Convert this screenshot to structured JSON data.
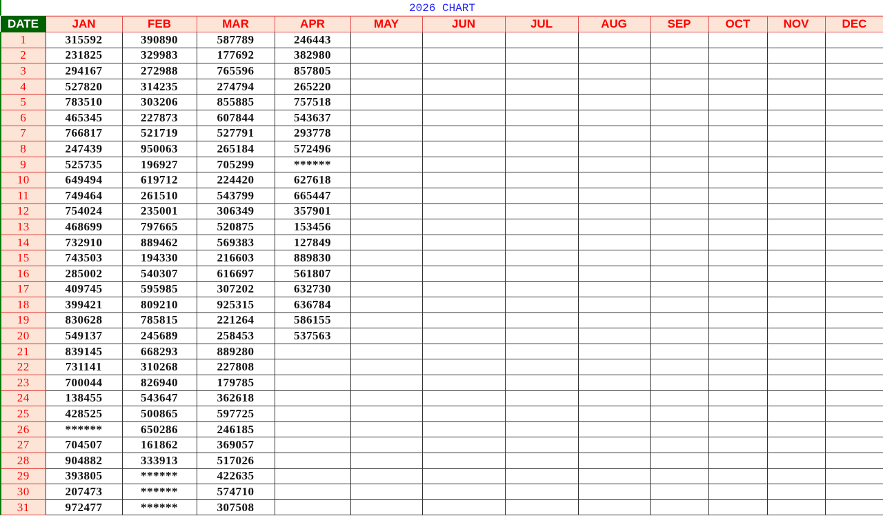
{
  "title": "2026 CHART",
  "colors": {
    "header_bg": "#fce4d6",
    "header_text": "#ff0000",
    "date_header_bg": "#006100",
    "title_text": "#1f1fff"
  },
  "date_header": "DATE",
  "months": [
    "JAN",
    "FEB",
    "MAR",
    "APR",
    "MAY",
    "JUN",
    "JUL",
    "AUG",
    "SEP",
    "OCT",
    "NOV",
    "DEC"
  ],
  "rows": [
    {
      "day": "1",
      "values": [
        "315592",
        "390890",
        "587789",
        "246443"
      ]
    },
    {
      "day": "2",
      "values": [
        "231825",
        "329983",
        "177692",
        "382980"
      ]
    },
    {
      "day": "3",
      "values": [
        "294167",
        "272988",
        "765596",
        "857805"
      ]
    },
    {
      "day": "4",
      "values": [
        "527820",
        "314235",
        "274794",
        "265220"
      ]
    },
    {
      "day": "5",
      "values": [
        "783510",
        "303206",
        "855885",
        "757518"
      ]
    },
    {
      "day": "6",
      "values": [
        "465345",
        "227873",
        "607844",
        "543637"
      ]
    },
    {
      "day": "7",
      "values": [
        "766817",
        "521719",
        "527791",
        "293778"
      ]
    },
    {
      "day": "8",
      "values": [
        "247439",
        "950063",
        "265184",
        "572496"
      ]
    },
    {
      "day": "9",
      "values": [
        "525735",
        "196927",
        "705299",
        "******"
      ]
    },
    {
      "day": "10",
      "values": [
        "649494",
        "619712",
        "224420",
        "627618"
      ]
    },
    {
      "day": "11",
      "values": [
        "749464",
        "261510",
        "543799",
        "665447"
      ]
    },
    {
      "day": "12",
      "values": [
        "754024",
        "235001",
        "306349",
        "357901"
      ]
    },
    {
      "day": "13",
      "values": [
        "468699",
        "797665",
        "520875",
        "153456"
      ]
    },
    {
      "day": "14",
      "values": [
        "732910",
        "889462",
        "569383",
        "127849"
      ]
    },
    {
      "day": "15",
      "values": [
        "743503",
        "194330",
        "216603",
        "889830"
      ]
    },
    {
      "day": "16",
      "values": [
        "285002",
        "540307",
        "616697",
        "561807"
      ]
    },
    {
      "day": "17",
      "values": [
        "409745",
        "595985",
        "307202",
        "632730"
      ]
    },
    {
      "day": "18",
      "values": [
        "399421",
        "809210",
        "925315",
        "636784"
      ]
    },
    {
      "day": "19",
      "values": [
        "830628",
        "785815",
        "221264",
        "586155"
      ]
    },
    {
      "day": "20",
      "values": [
        "549137",
        "245689",
        "258453",
        "537563"
      ]
    },
    {
      "day": "21",
      "values": [
        "839145",
        "668293",
        "889280"
      ]
    },
    {
      "day": "22",
      "values": [
        "731141",
        "310268",
        "227808"
      ]
    },
    {
      "day": "23",
      "values": [
        "700044",
        "826940",
        "179785"
      ]
    },
    {
      "day": "24",
      "values": [
        "138455",
        "543647",
        "362618"
      ]
    },
    {
      "day": "25",
      "values": [
        "428525",
        "500865",
        "597725"
      ]
    },
    {
      "day": "26",
      "values": [
        "******",
        "650286",
        "246185"
      ]
    },
    {
      "day": "27",
      "values": [
        "704507",
        "161862",
        "369057"
      ]
    },
    {
      "day": "28",
      "values": [
        "904882",
        "333913",
        "517026"
      ]
    },
    {
      "day": "29",
      "values": [
        "393805",
        "******",
        "422635"
      ]
    },
    {
      "day": "30",
      "values": [
        "207473",
        "******",
        "574710"
      ]
    },
    {
      "day": "31",
      "values": [
        "972477",
        "******",
        "307508"
      ]
    }
  ]
}
